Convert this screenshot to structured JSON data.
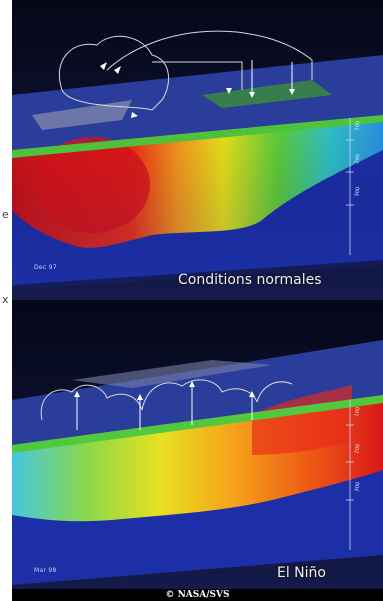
{
  "page_edge": {
    "top_glyph": "e",
    "bottom_glyph": "x"
  },
  "panels": [
    {
      "id": "normal",
      "title": "Conditions normales",
      "date_tag": "Dec 97",
      "depth_ticks": [
        "100",
        "200",
        "300"
      ]
    },
    {
      "id": "elnino",
      "title": "El Niño",
      "date_tag": "Mar 98",
      "depth_ticks": [
        "100",
        "200",
        "300"
      ]
    }
  ],
  "credit": "© NASA/SVS",
  "colors": {
    "ocean_deep": "#1c2fa6",
    "warm_core": "#e8141a",
    "cloud_outline": "#d9d9d9",
    "background": "#0b0f33"
  }
}
